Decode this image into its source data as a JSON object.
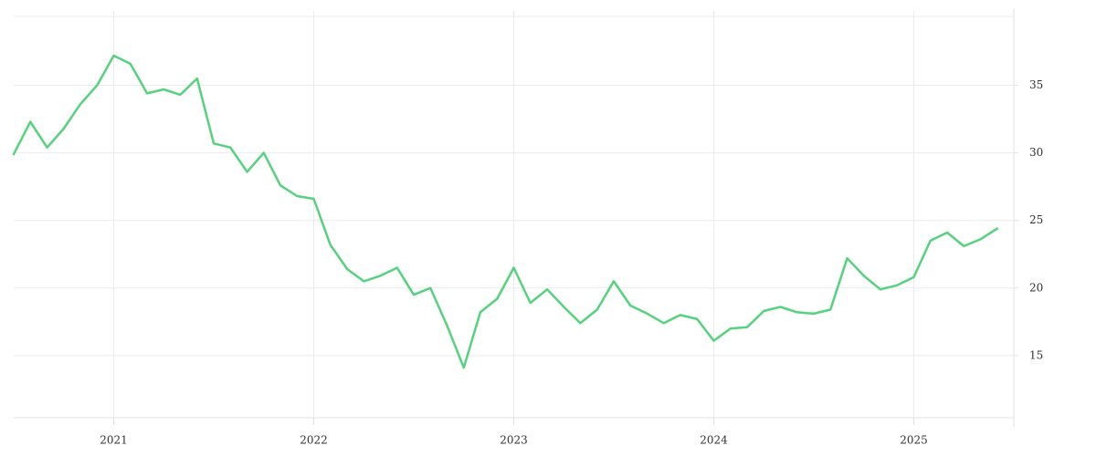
{
  "chart_data": {
    "type": "line",
    "x": [
      2020.5,
      2020.583,
      2020.667,
      2020.75,
      2020.833,
      2020.917,
      2021,
      2021.083,
      2021.167,
      2021.25,
      2021.333,
      2021.417,
      2021.5,
      2021.583,
      2021.667,
      2021.75,
      2021.833,
      2021.917,
      2022,
      2022.083,
      2022.167,
      2022.25,
      2022.333,
      2022.417,
      2022.5,
      2022.583,
      2022.667,
      2022.75,
      2022.833,
      2022.917,
      2023,
      2023.083,
      2023.167,
      2023.25,
      2023.333,
      2023.417,
      2023.5,
      2023.583,
      2023.667,
      2023.75,
      2023.833,
      2023.917,
      2024,
      2024.083,
      2024.167,
      2024.25,
      2024.333,
      2024.417,
      2024.5,
      2024.583,
      2024.667,
      2024.75,
      2024.833,
      2024.917,
      2025,
      2025.083,
      2025.167,
      2025.25,
      2025.333,
      2025.417
    ],
    "values": [
      29.9,
      32.3,
      30.4,
      31.8,
      33.6,
      35.0,
      37.2,
      36.6,
      34.4,
      34.7,
      34.3,
      35.5,
      30.7,
      30.4,
      28.6,
      30.0,
      27.6,
      26.8,
      26.6,
      23.2,
      21.4,
      20.5,
      20.9,
      21.5,
      19.5,
      20.0,
      17.2,
      14.1,
      18.2,
      19.2,
      21.5,
      18.9,
      19.9,
      18.6,
      17.4,
      18.4,
      20.5,
      18.7,
      18.1,
      17.4,
      18.0,
      17.7,
      16.1,
      17.0,
      17.1,
      18.3,
      18.6,
      18.2,
      18.1,
      18.4,
      22.2,
      20.9,
      19.9,
      20.2,
      20.8,
      23.5,
      24.1,
      23.1,
      23.6,
      24.4
    ],
    "color": "#55d27d",
    "xlim": [
      2020.5,
      2025.5
    ],
    "xticks": [
      2021,
      2022,
      2023,
      2024,
      2025
    ],
    "ylim": [
      10.4,
      40.1
    ],
    "yticks": [
      15,
      20,
      25,
      30,
      35
    ],
    "grid": true
  }
}
